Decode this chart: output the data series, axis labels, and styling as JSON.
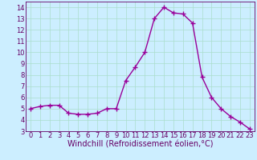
{
  "x": [
    0,
    1,
    2,
    3,
    4,
    5,
    6,
    7,
    8,
    9,
    10,
    11,
    12,
    13,
    14,
    15,
    16,
    17,
    18,
    19,
    20,
    21,
    22,
    23
  ],
  "y": [
    5.0,
    5.2,
    5.3,
    5.3,
    4.6,
    4.5,
    4.5,
    4.6,
    5.0,
    5.0,
    7.5,
    8.7,
    10.0,
    13.0,
    14.0,
    13.5,
    13.4,
    12.6,
    7.8,
    6.0,
    5.0,
    4.3,
    3.8,
    3.2
  ],
  "line_color": "#990099",
  "marker": "+",
  "marker_size": 4,
  "bg_color": "#cceeff",
  "grid_color": "#aaddcc",
  "xlabel": "Windchill (Refroidissement éolien,°C)",
  "xlim": [
    -0.5,
    23.5
  ],
  "ylim": [
    3,
    14.5
  ],
  "yticks": [
    3,
    4,
    5,
    6,
    7,
    8,
    9,
    10,
    11,
    12,
    13,
    14
  ],
  "xticks": [
    0,
    1,
    2,
    3,
    4,
    5,
    6,
    7,
    8,
    9,
    10,
    11,
    12,
    13,
    14,
    15,
    16,
    17,
    18,
    19,
    20,
    21,
    22,
    23
  ],
  "xlabel_fontsize": 7,
  "tick_fontsize": 6,
  "axis_color": "#660066",
  "line_width": 1.0,
  "marker_edge_width": 1.0
}
